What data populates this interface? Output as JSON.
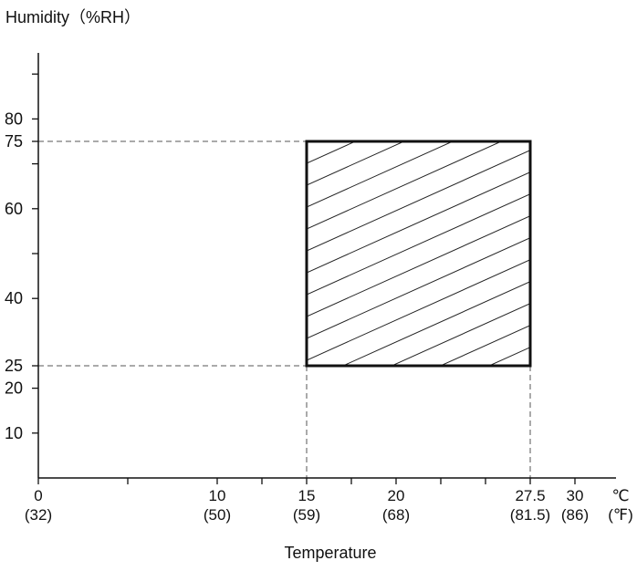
{
  "chart_data": {
    "type": "area",
    "ylabel": "Humidity（%RH）",
    "xlabel": "Temperature",
    "x_unit_c": "℃",
    "x_unit_f": "(℉)",
    "xlim": [
      0,
      32.5
    ],
    "ylim": [
      0,
      100
    ],
    "x_ticks": [
      {
        "c": 0,
        "label_c": "0",
        "label_f": "(32)"
      },
      {
        "c": 10,
        "label_c": "10",
        "label_f": "(50)"
      },
      {
        "c": 15,
        "label_c": "15",
        "label_f": "(59)"
      },
      {
        "c": 20,
        "label_c": "20",
        "label_f": "(68)"
      },
      {
        "c": 27.5,
        "label_c": "27.5",
        "label_f": "(81.5)"
      },
      {
        "c": 30,
        "label_c": "30",
        "label_f": "(86)"
      }
    ],
    "x_minor_ticks": [
      5,
      12.5,
      17.5,
      22.5,
      25
    ],
    "y_ticks": [
      {
        "value": 10,
        "label": "10"
      },
      {
        "value": 20,
        "label": "20"
      },
      {
        "value": 25,
        "label": "25"
      },
      {
        "value": 40,
        "label": "40"
      },
      {
        "value": 60,
        "label": "60"
      },
      {
        "value": 75,
        "label": "75"
      },
      {
        "value": 80,
        "label": "80"
      }
    ],
    "y_minor_ticks": [
      50,
      70,
      90
    ],
    "region": {
      "x_min": 15,
      "x_max": 27.5,
      "y_min": 25,
      "y_max": 75,
      "fill": "hatched"
    },
    "grid": false,
    "colors": {
      "axis": "#111111",
      "guide": "#555555",
      "hatch": "#222222"
    }
  }
}
